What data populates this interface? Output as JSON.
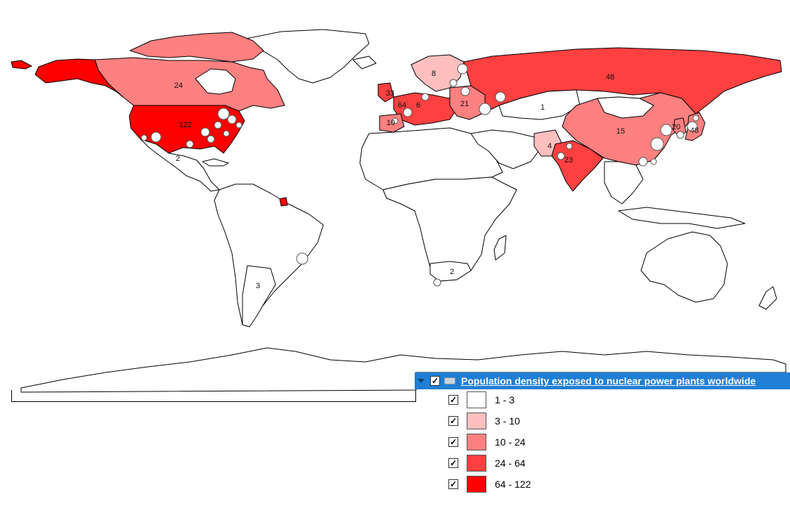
{
  "map": {
    "classes": [
      {
        "range": "1 - 3",
        "color": "#ffffff"
      },
      {
        "range": "3 - 10",
        "color": "#ffbfbf"
      },
      {
        "range": "10 - 24",
        "color": "#ff8080"
      },
      {
        "range": "24 - 64",
        "color": "#ff4040"
      },
      {
        "range": "64 - 122",
        "color": "#ff0000"
      }
    ],
    "country_values": {
      "usa": "122",
      "canada": "24",
      "russia": "48",
      "china": "15",
      "india": "23",
      "japan": "48",
      "korea": "20",
      "pakistan": "4",
      "mexico": "2",
      "argentina": "3",
      "south_africa": "2",
      "france": "64",
      "spain": "10",
      "uk": "33",
      "sweden": "8",
      "germany": "6",
      "ukraine": "21",
      "kazakhstan": "1"
    }
  },
  "legend": {
    "layer_title": "Population density exposed to nuclear power plants worldwide",
    "layer_checked": "✓",
    "items": [
      {
        "label": "1 - 3",
        "checked": "✓"
      },
      {
        "label": "3 - 10",
        "checked": "✓"
      },
      {
        "label": "10 - 24",
        "checked": "✓"
      },
      {
        "label": "24 - 64",
        "checked": "✓"
      },
      {
        "label": "64 - 122",
        "checked": "✓"
      }
    ]
  }
}
